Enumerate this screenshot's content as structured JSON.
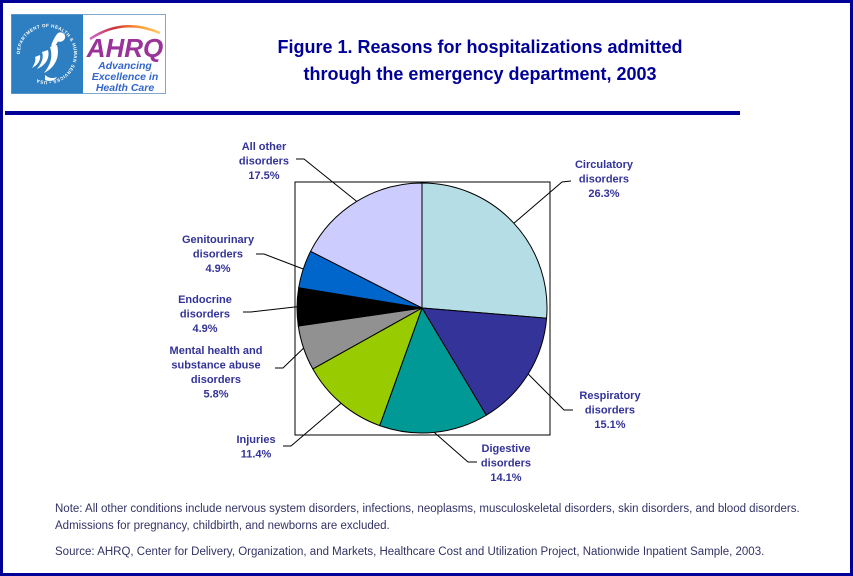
{
  "page": {
    "border_color": "#000099",
    "background": "#FFFFFF"
  },
  "header": {
    "logo": {
      "seal_text": "DEPARTMENT OF HEALTH & HUMAN SERVICES • USA",
      "seal_bg": "#2E7FC2",
      "brand": "AHRQ",
      "brand_color": "#993399",
      "tagline_lines": [
        "Advancing",
        "Excellence in",
        "Health Care"
      ],
      "tagline_color": "#3366CC"
    },
    "title_lines": [
      "Figure 1. Reasons for hospitalizations admitted",
      "through the emergency department, 2003"
    ],
    "title_color": "#000099",
    "rule_color": "#000099"
  },
  "chart_data": {
    "type": "pie",
    "title": "Figure 1. Reasons for hospitalizations admitted through the emergency department, 2003",
    "units": "percent of hospitalizations",
    "start_angle_deg_from_12_oclock": 0,
    "direction": "clockwise",
    "legend": "none (direct slice labels with leader lines)",
    "label_color": "#333399",
    "slices": [
      {
        "label": "Circulatory disorders",
        "value_pct": 26.3,
        "color": "#B5DDE6",
        "label_lines": [
          "Circulatory",
          "disorders",
          "26.3%"
        ]
      },
      {
        "label": "Respiratory disorders",
        "value_pct": 15.1,
        "color": "#333399",
        "label_lines": [
          "Respiratory",
          "disorders",
          "15.1%"
        ]
      },
      {
        "label": "Digestive disorders",
        "value_pct": 14.1,
        "color": "#009996",
        "label_lines": [
          "Digestive",
          "disorders",
          "14.1%"
        ]
      },
      {
        "label": "Injuries",
        "value_pct": 11.4,
        "color": "#99CC00",
        "label_lines": [
          "Injuries",
          "11.4%"
        ]
      },
      {
        "label": "Mental health and substance abuse disorders",
        "value_pct": 5.8,
        "color": "#919191",
        "label_lines": [
          "Mental health and",
          "substance abuse",
          "disorders",
          "5.8%"
        ]
      },
      {
        "label": "Endocrine disorders",
        "value_pct": 4.9,
        "color": "#000000",
        "label_lines": [
          "Endocrine",
          "disorders",
          "4.9%"
        ]
      },
      {
        "label": "Genitourinary disorders",
        "value_pct": 4.9,
        "color": "#0066CC",
        "label_lines": [
          "Genitourinary",
          "disorders",
          "4.9%"
        ]
      },
      {
        "label": "All other disorders",
        "value_pct": 17.5,
        "color": "#CCCCFF",
        "label_lines": [
          "All other",
          "disorders",
          "17.5%"
        ]
      }
    ]
  },
  "footer": {
    "note": "Note: All other conditions include nervous system disorders, infections, neoplasms, musculoskeletal disorders, skin disorders, and blood disorders. Admissions for pregnancy, childbirth, and newborns are excluded.",
    "source": "Source: AHRQ, Center for Delivery, Organization, and Markets, Healthcare Cost and Utilization Project, Nationwide Inpatient Sample, 2003.",
    "text_color": "#333366"
  }
}
